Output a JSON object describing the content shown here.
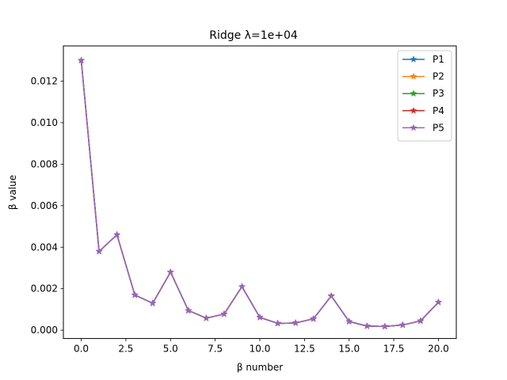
{
  "chart_data": {
    "type": "line",
    "title": "Ridge λ=1e+04",
    "xlabel": "β number",
    "ylabel": "β value",
    "xlim": [
      -1.0,
      21.0
    ],
    "ylim": [
      -0.0004,
      0.0137
    ],
    "xticks": [
      0.0,
      2.5,
      5.0,
      7.5,
      10.0,
      12.5,
      15.0,
      17.5,
      20.0
    ],
    "xtick_labels": [
      "0.0",
      "2.5",
      "5.0",
      "7.5",
      "10.0",
      "12.5",
      "15.0",
      "17.5",
      "20.0"
    ],
    "yticks": [
      0.0,
      0.002,
      0.004,
      0.006,
      0.008,
      0.01,
      0.012
    ],
    "ytick_labels": [
      "0.000",
      "0.002",
      "0.004",
      "0.006",
      "0.008",
      "0.010",
      "0.012"
    ],
    "grid": false,
    "legend": "top-right",
    "marker": "star",
    "x": [
      0,
      1,
      2,
      3,
      4,
      5,
      6,
      7,
      8,
      9,
      10,
      11,
      12,
      13,
      14,
      15,
      16,
      17,
      18,
      19,
      20
    ],
    "series": [
      {
        "name": "P1",
        "color": "#1f77b4",
        "values": [
          0.013,
          0.0038,
          0.0046,
          0.0017,
          0.0013,
          0.0028,
          0.00095,
          0.00058,
          0.00078,
          0.0021,
          0.00062,
          0.00033,
          0.00035,
          0.00055,
          0.00165,
          0.00042,
          0.0002,
          0.00018,
          0.00025,
          0.00045,
          0.00135
        ]
      },
      {
        "name": "P2",
        "color": "#ff7f0e",
        "values": [
          0.013,
          0.0038,
          0.0046,
          0.0017,
          0.0013,
          0.0028,
          0.00095,
          0.00058,
          0.00078,
          0.0021,
          0.00062,
          0.00033,
          0.00035,
          0.00055,
          0.00165,
          0.00042,
          0.0002,
          0.00018,
          0.00025,
          0.00045,
          0.00135
        ]
      },
      {
        "name": "P3",
        "color": "#2ca02c",
        "values": [
          0.013,
          0.0038,
          0.0046,
          0.0017,
          0.0013,
          0.0028,
          0.00095,
          0.00058,
          0.00078,
          0.0021,
          0.00062,
          0.00033,
          0.00035,
          0.00055,
          0.00165,
          0.00042,
          0.0002,
          0.00018,
          0.00025,
          0.00045,
          0.00135
        ]
      },
      {
        "name": "P4",
        "color": "#d62728",
        "values": [
          0.013,
          0.0038,
          0.0046,
          0.0017,
          0.0013,
          0.0028,
          0.00095,
          0.00058,
          0.00078,
          0.0021,
          0.00062,
          0.00033,
          0.00035,
          0.00055,
          0.00165,
          0.00042,
          0.0002,
          0.00018,
          0.00025,
          0.00045,
          0.00135
        ]
      },
      {
        "name": "P5",
        "color": "#9467bd",
        "values": [
          0.013,
          0.0038,
          0.0046,
          0.0017,
          0.0013,
          0.0028,
          0.00095,
          0.00058,
          0.00078,
          0.0021,
          0.00062,
          0.00033,
          0.00035,
          0.00055,
          0.00165,
          0.00042,
          0.0002,
          0.00018,
          0.00025,
          0.00045,
          0.00135
        ]
      }
    ]
  }
}
